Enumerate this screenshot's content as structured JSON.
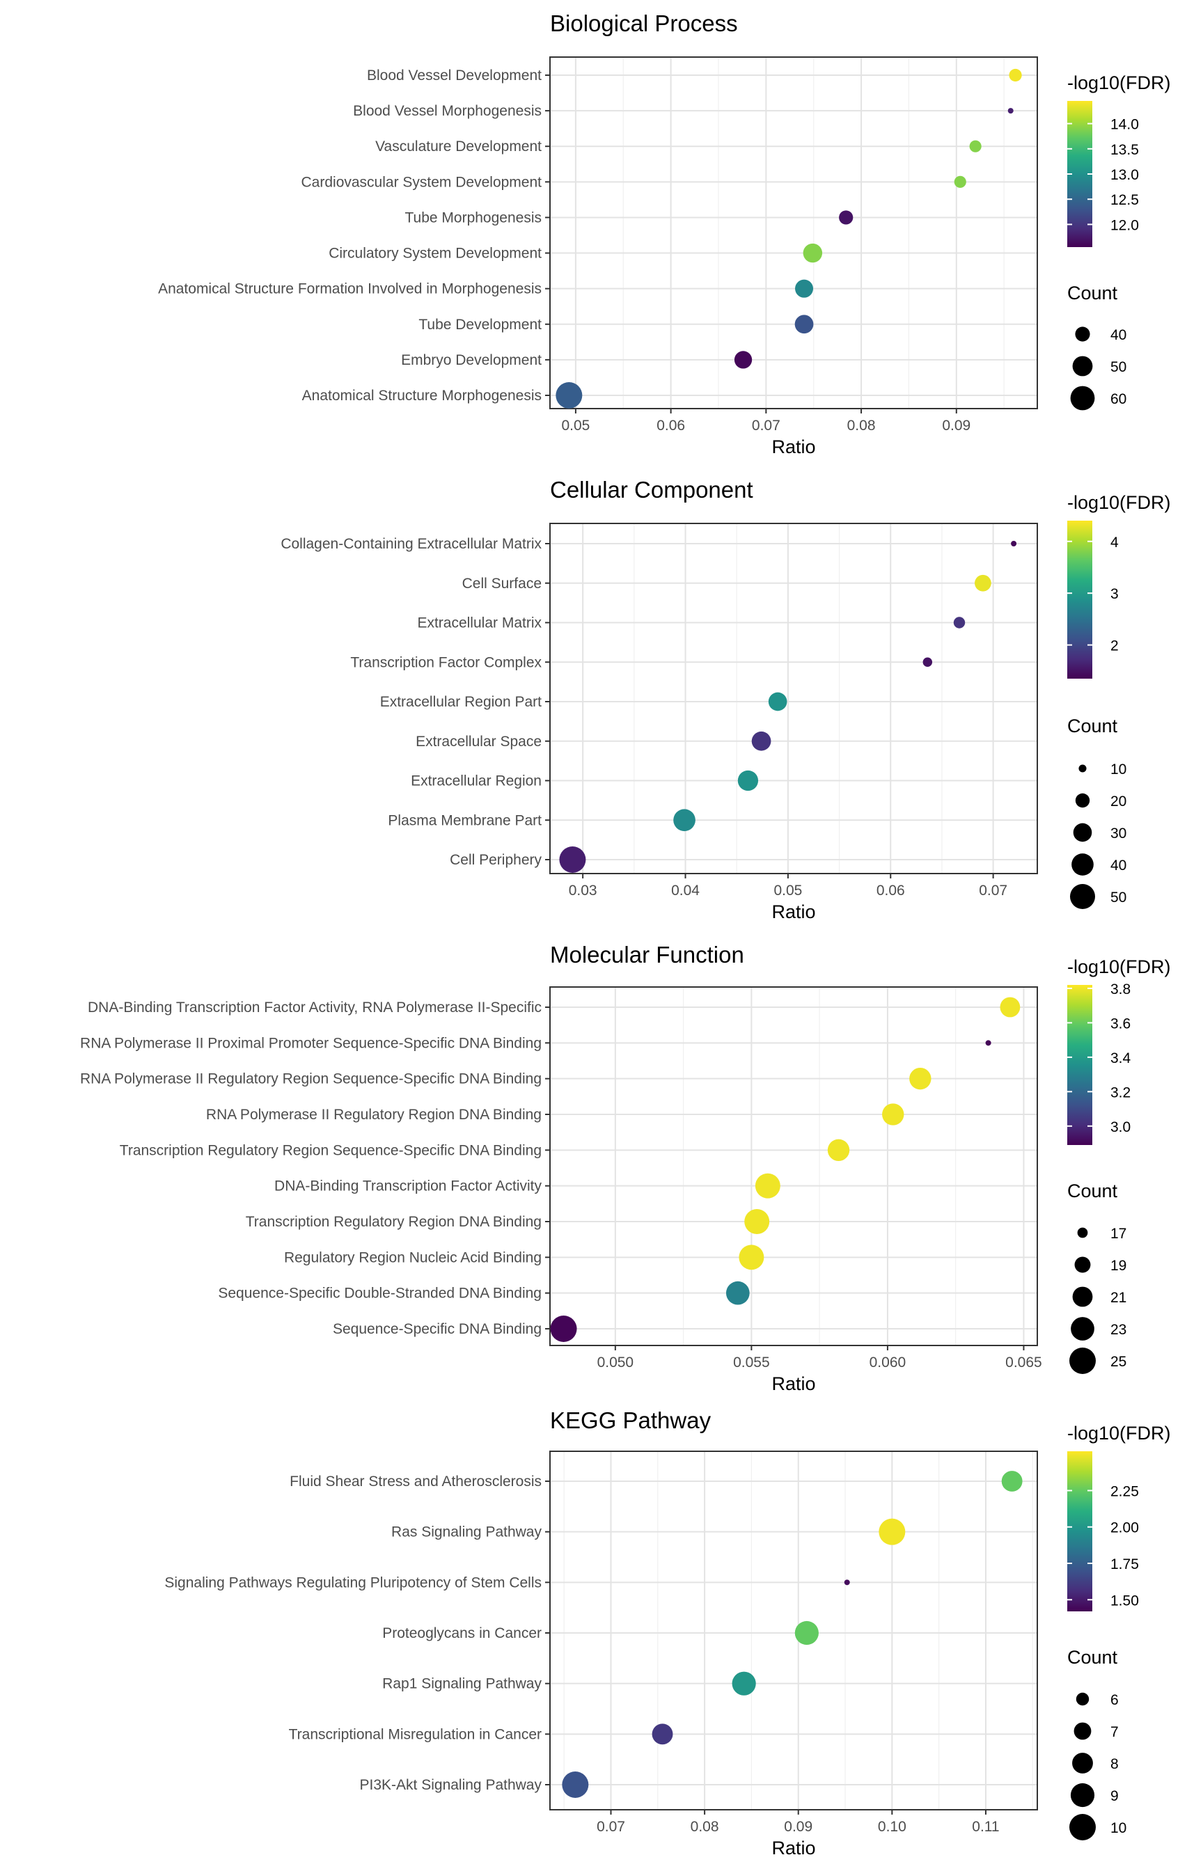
{
  "chart_data": [
    {
      "type": "scatter",
      "title": "Biological Process",
      "xlabel": "Ratio",
      "ylabel": "",
      "xlim": [
        0.0473,
        0.0985
      ],
      "xticks": [
        "0.05",
        "0.06",
        "0.07",
        "0.08",
        "0.09"
      ],
      "xtick_values": [
        0.05,
        0.06,
        0.07,
        0.08,
        0.09
      ],
      "grid": true,
      "terms": [
        "Blood Vessel Development",
        "Blood Vessel Morphogenesis",
        "Vasculature Development",
        "Cardiovascular System Development",
        "Tube Morphogenesis",
        "Circulatory System Development",
        "Anatomical Structure Formation Involved in Morphogenesis",
        "Tube Development",
        "Embryo Development",
        "Anatomical Structure Morphogenesis"
      ],
      "x": [
        0.0962,
        0.0957,
        0.092,
        0.0904,
        0.0784,
        0.0749,
        0.074,
        0.074,
        0.0676,
        0.0493
      ],
      "fdr": [
        14.4,
        11.8,
        13.9,
        13.9,
        11.7,
        13.9,
        12.9,
        12.3,
        11.6,
        12.4
      ],
      "count": [
        37,
        30,
        36,
        36,
        39,
        48,
        46,
        47,
        45,
        66
      ],
      "color_legend": {
        "title": "-log10(FDR)",
        "ticks": [
          "14.0",
          "13.5",
          "13.0",
          "12.5",
          "12.0"
        ],
        "tick_values": [
          14.0,
          13.5,
          13.0,
          12.5,
          12.0
        ],
        "range": [
          11.55,
          14.45
        ]
      },
      "size_legend": {
        "title": "Count",
        "labels": [
          "40",
          "50",
          "60"
        ],
        "values": [
          40,
          50,
          60
        ],
        "domain": [
          30,
          66
        ]
      }
    },
    {
      "type": "scatter",
      "title": "Cellular Component",
      "xlabel": "Ratio",
      "ylabel": "",
      "xlim": [
        0.0268,
        0.0743
      ],
      "xticks": [
        "0.03",
        "0.04",
        "0.05",
        "0.06",
        "0.07"
      ],
      "xtick_values": [
        0.03,
        0.04,
        0.05,
        0.06,
        0.07
      ],
      "grid": true,
      "terms": [
        "Collagen-Containing Extracellular Matrix",
        "Cell Surface",
        "Extracellular Matrix",
        "Transcription Factor Complex",
        "Extracellular Region Part",
        "Extracellular Space",
        "Extracellular Region",
        "Plasma Membrane Part",
        "Cell Periphery"
      ],
      "x": [
        0.072,
        0.069,
        0.0667,
        0.0636,
        0.049,
        0.0474,
        0.0461,
        0.0399,
        0.029
      ],
      "fdr": [
        1.4,
        4.3,
        1.8,
        1.5,
        2.9,
        1.8,
        2.9,
        2.8,
        1.6
      ],
      "count": [
        8,
        25,
        15,
        12,
        30,
        32,
        35,
        40,
        55
      ],
      "color_legend": {
        "title": "-log10(FDR)",
        "ticks": [
          "4",
          "3",
          "2"
        ],
        "tick_values": [
          4,
          3,
          2
        ],
        "range": [
          1.35,
          4.4
        ]
      },
      "size_legend": {
        "title": "Count",
        "labels": [
          "10",
          "20",
          "30",
          "40",
          "50"
        ],
        "values": [
          10,
          20,
          30,
          40,
          50
        ],
        "domain": [
          8,
          55
        ]
      }
    },
    {
      "type": "scatter",
      "title": "Molecular Function",
      "xlabel": "Ratio",
      "ylabel": "",
      "xlim": [
        0.0476,
        0.0655
      ],
      "xticks": [
        "0.050",
        "0.055",
        "0.060",
        "0.065"
      ],
      "xtick_values": [
        0.05,
        0.055,
        0.06,
        0.065
      ],
      "grid": true,
      "terms": [
        "DNA-Binding Transcription Factor Activity, RNA Polymerase II-Specific",
        "RNA Polymerase II Proximal Promoter Sequence-Specific DNA Binding",
        "RNA Polymerase II Regulatory Region Sequence-Specific DNA Binding",
        "RNA Polymerase II Regulatory Region DNA Binding",
        "Transcription Regulatory Region Sequence-Specific DNA Binding",
        "DNA-Binding Transcription Factor Activity",
        "Transcription Regulatory Region DNA Binding",
        "Regulatory Region Nucleic Acid Binding",
        "Sequence-Specific Double-Stranded DNA Binding",
        "Sequence-Specific DNA Binding"
      ],
      "x": [
        0.0645,
        0.0637,
        0.0612,
        0.0602,
        0.0582,
        0.0556,
        0.0552,
        0.055,
        0.0545,
        0.0481
      ],
      "fdr": [
        3.8,
        2.9,
        3.8,
        3.8,
        3.8,
        3.8,
        3.8,
        3.8,
        3.3,
        2.9
      ],
      "count": [
        21,
        16,
        22,
        22,
        22,
        24,
        24,
        24,
        23,
        25
      ],
      "color_legend": {
        "title": "-log10(FDR)",
        "ticks": [
          "3.8",
          "3.6",
          "3.4",
          "3.2",
          "3.0"
        ],
        "tick_values": [
          3.8,
          3.6,
          3.4,
          3.2,
          3.0
        ],
        "range": [
          2.89,
          3.82
        ]
      },
      "size_legend": {
        "title": "Count",
        "labels": [
          "17",
          "19",
          "21",
          "23",
          "25"
        ],
        "values": [
          17,
          19,
          21,
          23,
          25
        ],
        "domain": [
          16,
          25
        ]
      }
    },
    {
      "type": "scatter",
      "title": "KEGG Pathway",
      "xlabel": "Ratio",
      "ylabel": "",
      "xlim": [
        0.0635,
        0.1155
      ],
      "xticks": [
        "0.07",
        "0.08",
        "0.09",
        "0.10",
        "0.11"
      ],
      "xtick_values": [
        0.07,
        0.08,
        0.09,
        0.1,
        0.11
      ],
      "grid": true,
      "terms": [
        "Fluid Shear Stress and Atherosclerosis",
        "Ras Signaling Pathway",
        "Signaling Pathways Regulating Pluripotency of Stem Cells",
        "Proteoglycans in Cancer",
        "Rap1 Signaling Pathway",
        "Transcriptional Misregulation in Cancer",
        "PI3K-Akt Signaling Pathway"
      ],
      "x": [
        0.1128,
        0.1,
        0.0952,
        0.0909,
        0.0842,
        0.0755,
        0.0662
      ],
      "fdr": [
        2.25,
        2.5,
        1.45,
        2.25,
        2.0,
        1.6,
        1.7
      ],
      "count": [
        8,
        10,
        5,
        9,
        9,
        8,
        10
      ],
      "color_legend": {
        "title": "-log10(FDR)",
        "ticks": [
          "2.25",
          "2.00",
          "1.75",
          "1.50"
        ],
        "tick_values": [
          2.25,
          2.0,
          1.75,
          1.5
        ],
        "range": [
          1.42,
          2.52
        ]
      },
      "size_legend": {
        "title": "Count",
        "labels": [
          "6",
          "7",
          "8",
          "9",
          "10"
        ],
        "values": [
          6,
          7,
          8,
          9,
          10
        ],
        "domain": [
          5,
          10
        ]
      }
    }
  ]
}
